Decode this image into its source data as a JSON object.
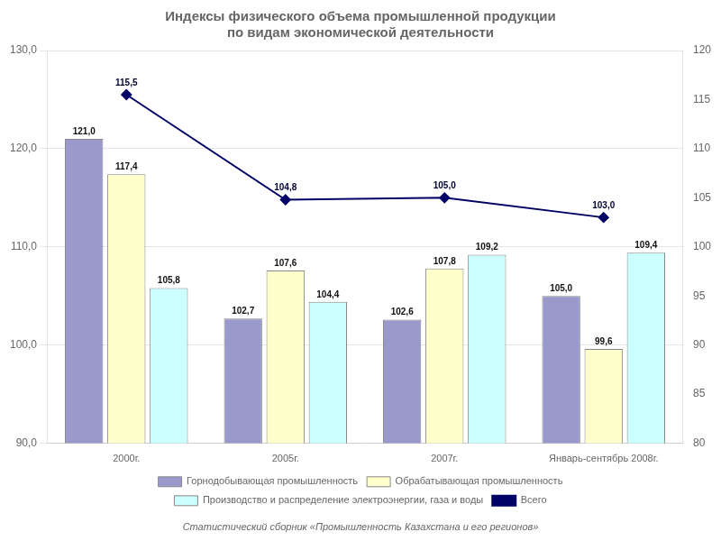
{
  "chart_data": {
    "type": "bar",
    "title": [
      "Индексы физического объема промышленной продукции",
      "по видам экономической деятельности"
    ],
    "categories": [
      "2000г.",
      "2005г.",
      "2007г.",
      "Январь-сентябрь 2008г."
    ],
    "series": [
      {
        "name": "Горнодобывающая промышленность",
        "color": "#9999cc",
        "values": [
          121.0,
          102.7,
          102.6,
          105.0
        ],
        "value_labels": [
          "121,0",
          "102,7",
          "102,6",
          "105,0"
        ]
      },
      {
        "name": "Обрабатывающая промышленность",
        "color": "#ffffcc",
        "values": [
          117.4,
          107.6,
          107.8,
          99.6
        ],
        "value_labels": [
          "117,4",
          "107,6",
          "107,8",
          "99,6"
        ]
      },
      {
        "name": "Производство и распределение электроэнергии, газа и воды",
        "color": "#ccffff",
        "values": [
          105.8,
          104.4,
          109.2,
          109.4
        ],
        "value_labels": [
          "105,8",
          "104,4",
          "109,2",
          "109,4"
        ]
      },
      {
        "name": "Всего",
        "type": "line",
        "axis": "y2",
        "color": "#000066",
        "marker": "diamond",
        "values": [
          115.5,
          104.8,
          105.0,
          103.0
        ],
        "value_labels": [
          "115,5",
          "104,8",
          "105,0",
          "103,0"
        ]
      }
    ],
    "ylim": [
      90.0,
      130.0
    ],
    "yticks": [
      {
        "value": 90.0,
        "label": "90,0"
      },
      {
        "value": 100.0,
        "label": "100,0"
      },
      {
        "value": 110.0,
        "label": "110,0"
      },
      {
        "value": 120.0,
        "label": "120,0"
      },
      {
        "value": 130.0,
        "label": "130,0"
      }
    ],
    "y2lim": [
      80,
      120
    ],
    "y2ticks": [
      80,
      85,
      90,
      95,
      100,
      105,
      110,
      115,
      120
    ],
    "grid": true,
    "legend": "bottom",
    "data_labels": true,
    "annotations": [
      "Статистический сборник «Промышленность Казахстана и его регионов»"
    ]
  }
}
